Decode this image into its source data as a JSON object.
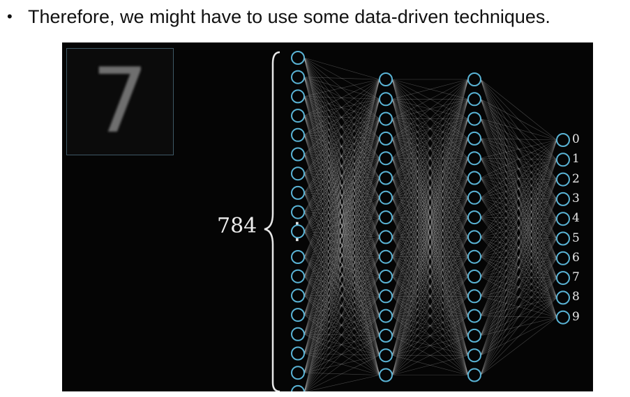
{
  "slide": {
    "bullet_text": "Therefore, we might have to use some data-driven techniques."
  },
  "figure": {
    "input_digit": "7",
    "input_count_label": "784",
    "ellipsis": "⋮",
    "output_labels": [
      "0",
      "1",
      "2",
      "3",
      "4",
      "5",
      "6",
      "7",
      "8",
      "9"
    ],
    "colors": {
      "background": "#050505",
      "neuron_stroke": "#5ab4d6",
      "connection": "#cfcfcf"
    }
  }
}
